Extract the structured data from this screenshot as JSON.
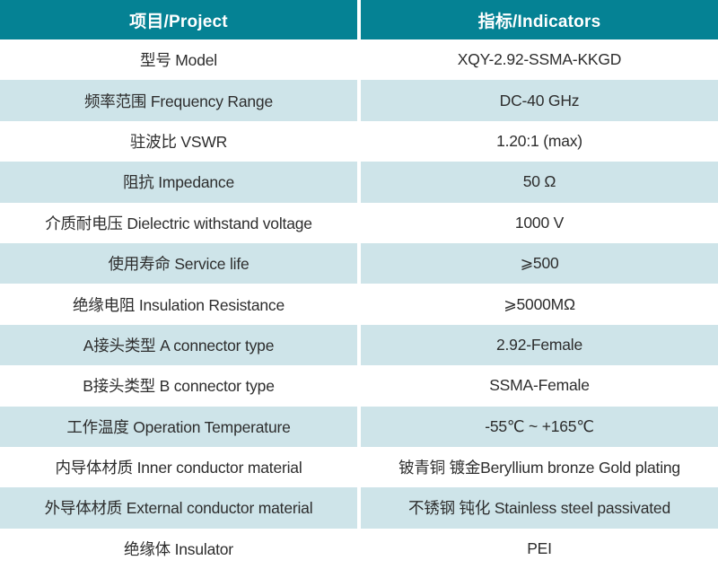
{
  "colors": {
    "header_bg": "#058294",
    "header_text": "#ffffff",
    "row_bg": "#ffffff",
    "row_alt_bg": "#cee4e9",
    "text": "#2d2d2d",
    "divider": "#ffffff"
  },
  "table": {
    "header": {
      "project": "项目/Project",
      "indicators": "指标/Indicators"
    },
    "rows": [
      {
        "label": "型号 Model",
        "value": "XQY-2.92-SSMA-KKGD"
      },
      {
        "label": "频率范围 Frequency Range",
        "value": "DC-40 GHz"
      },
      {
        "label": "驻波比 VSWR",
        "value": "1.20:1 (max)"
      },
      {
        "label": "阻抗 Impedance",
        "value": "50 Ω"
      },
      {
        "label": "介质耐电压 Dielectric withstand voltage",
        "value": "1000 V"
      },
      {
        "label": "使用寿命 Service life",
        "value": "⩾500"
      },
      {
        "label": "绝缘电阻 Insulation Resistance",
        "value": "⩾5000MΩ"
      },
      {
        "label": "A接头类型 A connector type",
        "value": "2.92-Female"
      },
      {
        "label": "B接头类型 B connector type",
        "value": "SSMA-Female"
      },
      {
        "label": "工作温度 Operation Temperature",
        "value": "-55℃ ~ +165℃"
      },
      {
        "label": "内导体材质 Inner conductor material",
        "value": "铍青铜 镀金Beryllium bronze Gold plating"
      },
      {
        "label": "外导体材质 External conductor material",
        "value": "不锈钢 钝化 Stainless steel passivated"
      },
      {
        "label": "绝缘体 Insulator",
        "value": "PEI"
      }
    ]
  }
}
